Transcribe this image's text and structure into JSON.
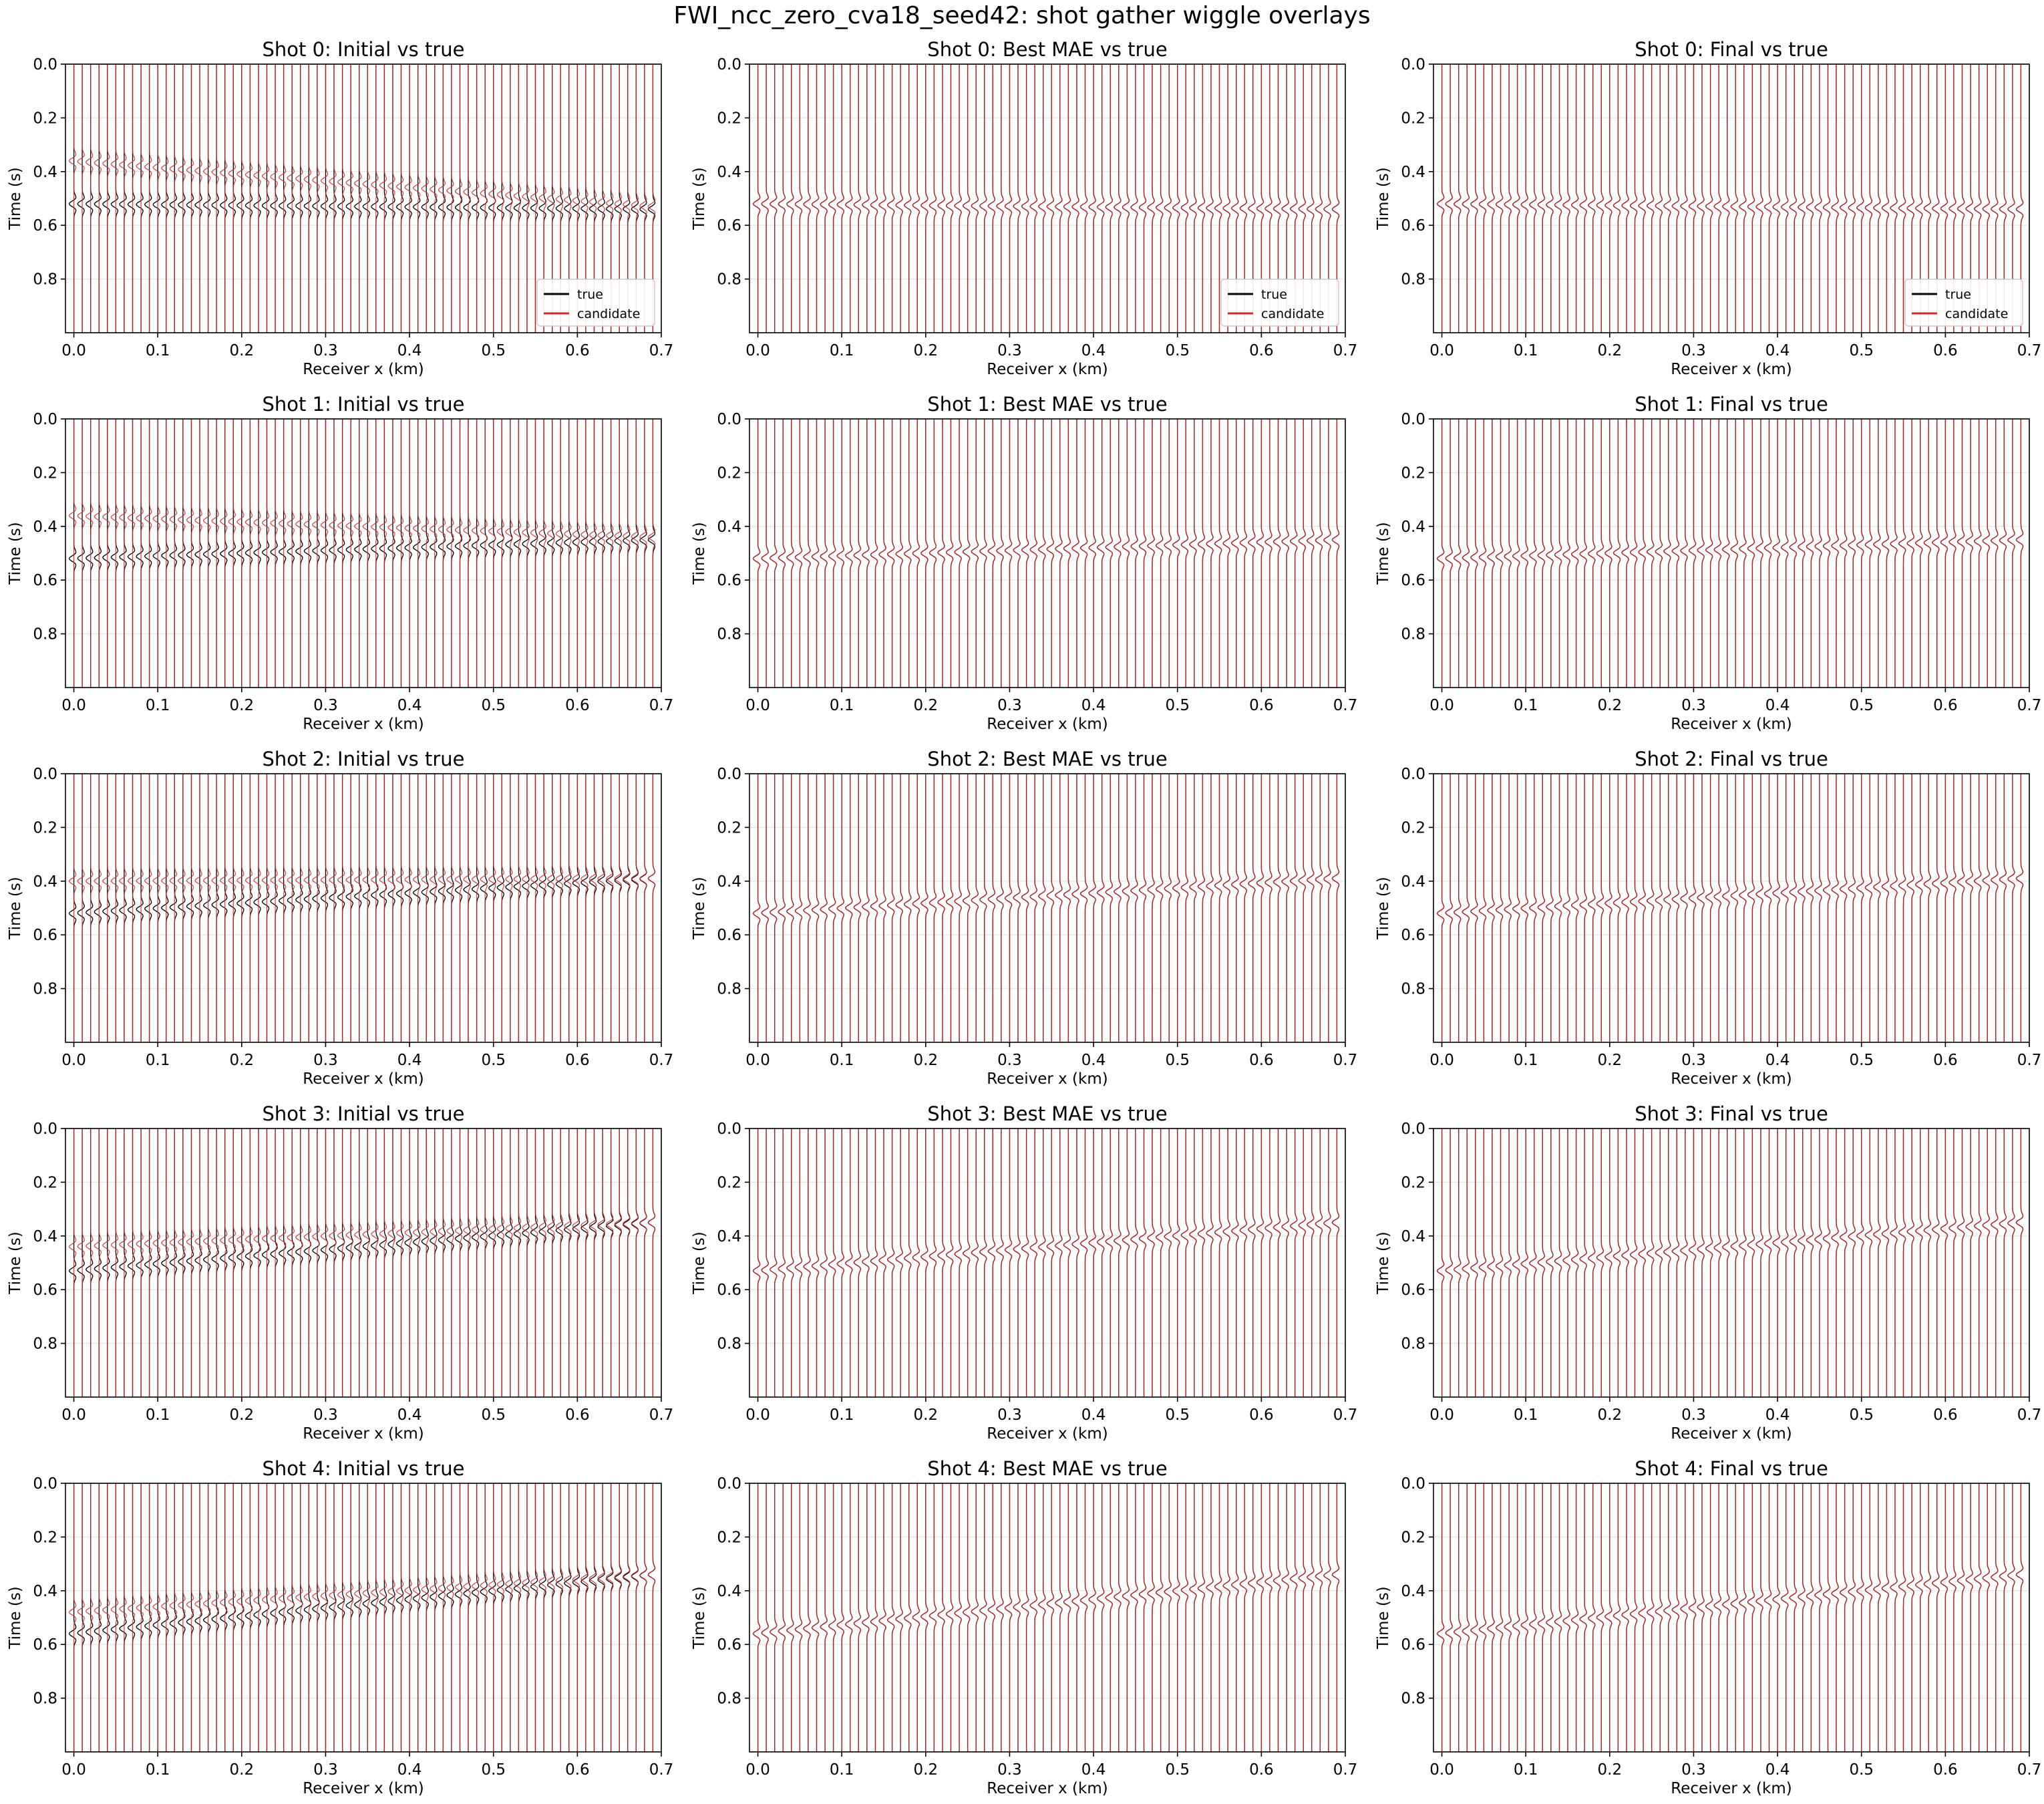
{
  "figure": {
    "title": "FWI_ncc_zero_cva18_seed42: shot gather wiggle overlays"
  },
  "chart_data": {
    "type": "line",
    "description_of_marks": "wiggle traces: true (black) vs candidate (red), one trace per receiver",
    "xlabel": "Receiver x (km)",
    "ylabel": "Time (s)",
    "xlim": [
      -0.01,
      0.7
    ],
    "ylim": [
      1.0,
      0.0
    ],
    "xticks": [
      "0.0",
      "0.1",
      "0.2",
      "0.3",
      "0.4",
      "0.5",
      "0.6",
      "0.7"
    ],
    "yticks": [
      "0.0",
      "0.2",
      "0.4",
      "0.6",
      "0.8"
    ],
    "grid": true,
    "legend": {
      "entries": [
        "true",
        "candidate"
      ],
      "placement": "lower-right",
      "shown_in_row": 0
    },
    "colors": {
      "true": "#000000",
      "candidate": "#d62728"
    },
    "receivers": {
      "first_km": 0.0,
      "last_km": 0.69,
      "count": 70
    },
    "panels": [
      {
        "shot": 0,
        "title": "Shot 0: Initial vs true",
        "true_arrival_s": [
          0.52,
          0.54
        ],
        "candidate_arrival_s": [
          0.36,
          0.53
        ]
      },
      {
        "shot": 0,
        "title": "Shot 0: Best MAE vs true",
        "true_arrival_s": [
          0.52,
          0.54
        ],
        "candidate_arrival_s": [
          0.52,
          0.54
        ]
      },
      {
        "shot": 0,
        "title": "Shot 0: Final vs true",
        "true_arrival_s": [
          0.52,
          0.54
        ],
        "candidate_arrival_s": [
          0.52,
          0.54
        ]
      },
      {
        "shot": 1,
        "title": "Shot 1: Initial vs true",
        "true_arrival_s": [
          0.52,
          0.45
        ],
        "candidate_arrival_s": [
          0.36,
          0.44
        ]
      },
      {
        "shot": 1,
        "title": "Shot 1: Best MAE vs true",
        "true_arrival_s": [
          0.52,
          0.45
        ],
        "candidate_arrival_s": [
          0.52,
          0.45
        ]
      },
      {
        "shot": 1,
        "title": "Shot 1: Final vs true",
        "true_arrival_s": [
          0.52,
          0.45
        ],
        "candidate_arrival_s": [
          0.52,
          0.45
        ]
      },
      {
        "shot": 2,
        "title": "Shot 2: Initial vs true",
        "true_arrival_s": [
          0.52,
          0.39
        ],
        "candidate_arrival_s": [
          0.4,
          0.39
        ]
      },
      {
        "shot": 2,
        "title": "Shot 2: Best MAE vs true",
        "true_arrival_s": [
          0.52,
          0.39
        ],
        "candidate_arrival_s": [
          0.52,
          0.39
        ]
      },
      {
        "shot": 2,
        "title": "Shot 2: Final vs true",
        "true_arrival_s": [
          0.52,
          0.39
        ],
        "candidate_arrival_s": [
          0.52,
          0.39
        ]
      },
      {
        "shot": 3,
        "title": "Shot 3: Initial vs true",
        "true_arrival_s": [
          0.53,
          0.35
        ],
        "candidate_arrival_s": [
          0.44,
          0.35
        ]
      },
      {
        "shot": 3,
        "title": "Shot 3: Best MAE vs true",
        "true_arrival_s": [
          0.53,
          0.35
        ],
        "candidate_arrival_s": [
          0.53,
          0.35
        ]
      },
      {
        "shot": 3,
        "title": "Shot 3: Final vs true",
        "true_arrival_s": [
          0.53,
          0.35
        ],
        "candidate_arrival_s": [
          0.53,
          0.35
        ]
      },
      {
        "shot": 4,
        "title": "Shot 4: Initial vs true",
        "true_arrival_s": [
          0.56,
          0.34
        ],
        "candidate_arrival_s": [
          0.48,
          0.34
        ]
      },
      {
        "shot": 4,
        "title": "Shot 4: Best MAE vs true",
        "true_arrival_s": [
          0.56,
          0.34
        ],
        "candidate_arrival_s": [
          0.56,
          0.34
        ]
      },
      {
        "shot": 4,
        "title": "Shot 4: Final vs true",
        "true_arrival_s": [
          0.56,
          0.34
        ],
        "candidate_arrival_s": [
          0.56,
          0.34
        ]
      }
    ]
  }
}
